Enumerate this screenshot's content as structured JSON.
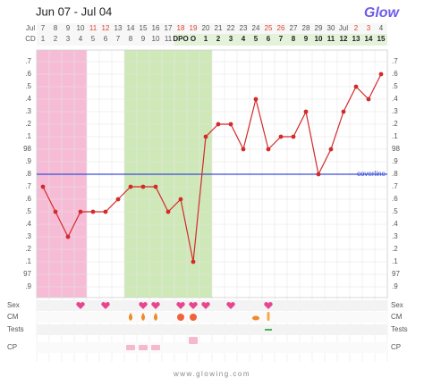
{
  "header": {
    "title": "Jun 07 - Jul 04",
    "logo": "Glow"
  },
  "chart_data": {
    "type": "line",
    "month_label": "Jul",
    "cd_label": "CD",
    "categories": [
      "7",
      "8",
      "9",
      "10",
      "11",
      "12",
      "13",
      "14",
      "15",
      "16",
      "17",
      "18",
      "19",
      "20",
      "21",
      "22",
      "23",
      "24",
      "25",
      "26",
      "27",
      "28",
      "29",
      "30",
      "Jul",
      "2",
      "3",
      "4"
    ],
    "cycle_days": [
      "1",
      "2",
      "3",
      "4",
      "5",
      "6",
      "7",
      "8",
      "9",
      "10",
      "11",
      "DPO",
      "O",
      "1",
      "2",
      "3",
      "4",
      "5",
      "6",
      "7",
      "8",
      "9",
      "10",
      "11",
      "12",
      "13",
      "14",
      "15"
    ],
    "values": [
      97.7,
      97.5,
      97.3,
      97.5,
      97.5,
      97.5,
      97.6,
      97.7,
      97.7,
      97.7,
      97.5,
      97.6,
      97.1,
      98.1,
      98.2,
      98.2,
      98.0,
      98.4,
      98.0,
      98.1,
      98.1,
      98.3,
      97.8,
      98.0,
      98.3,
      98.5,
      98.4,
      98.6
    ],
    "color": "#d42a2a",
    "ylim": [
      96.85,
      98.75
    ],
    "yticks": [
      {
        "value": 98.7,
        "label": ".7"
      },
      {
        "value": 98.6,
        "label": ".6"
      },
      {
        "value": 98.5,
        "label": ".5"
      },
      {
        "value": 98.4,
        "label": ".4"
      },
      {
        "value": 98.3,
        "label": ".3"
      },
      {
        "value": 98.2,
        "label": ".2"
      },
      {
        "value": 98.1,
        "label": ".1"
      },
      98,
      {
        "value": 97.9,
        "label": ".9"
      },
      {
        "value": 97.8,
        "label": ".8"
      },
      {
        "value": 97.7,
        "label": ".7"
      },
      {
        "value": 97.6,
        "label": ".6"
      },
      {
        "value": 97.5,
        "label": ".5"
      },
      {
        "value": 97.4,
        "label": ".4"
      },
      {
        "value": 97.3,
        "label": ".3"
      },
      {
        "value": 97.2,
        "label": ".2"
      },
      {
        "value": 97.1,
        "label": ".1"
      },
      97,
      {
        "value": 96.9,
        "label": ".9"
      }
    ],
    "grid": true,
    "coverline": {
      "value": 97.8,
      "label": "coverline",
      "color": "#3b4fd8"
    },
    "row_labels": [
      "Sex",
      "CM",
      "Tests",
      "CP"
    ]
  },
  "footer": "www.glowing.com"
}
